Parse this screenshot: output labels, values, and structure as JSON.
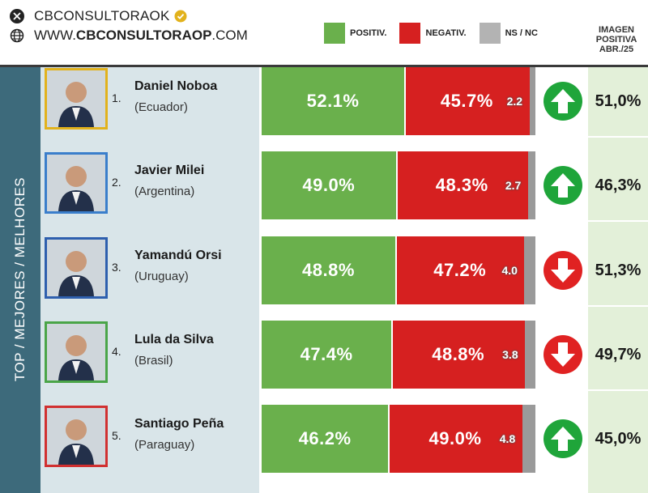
{
  "header": {
    "handle": "CBCONSULTORAOK",
    "site_prefix": "WWW.",
    "site_bold": "CBCONSULTORAOP",
    "site_suffix": ".COM",
    "icons": [
      "x-logo-icon",
      "verified-badge-icon",
      "globe-icon"
    ]
  },
  "legend": [
    {
      "label": "POSITIV.",
      "color": "#6ab04c"
    },
    {
      "label": "NEGATIV.",
      "color": "#d62020"
    },
    {
      "label": "NS / NC",
      "color": "#b3b3b3"
    }
  ],
  "column_header": [
    "IMAGEN",
    "POSITIVA",
    "ABR./25"
  ],
  "sidebar_label": "TOP / MEJORES / MELHORES",
  "colors": {
    "positive": "#6ab04c",
    "negative": "#d62020",
    "nsnc": "#9a9a9a",
    "up": "#1fa53a",
    "down": "#e02222"
  },
  "chart_data": {
    "type": "bar",
    "stacked": true,
    "orientation": "horizontal",
    "categories": [
      "Daniel Noboa",
      "Javier Milei",
      "Yamandú Orsi",
      "Lula da Silva",
      "Santiago Peña"
    ],
    "series": [
      {
        "name": "POSITIV.",
        "values": [
          52.1,
          49.0,
          48.8,
          47.4,
          46.2
        ],
        "labels": [
          "52.1%",
          "49.0%",
          "48.8%",
          "47.4%",
          "46.2%"
        ]
      },
      {
        "name": "NEGATIV.",
        "values": [
          45.7,
          48.3,
          47.2,
          48.8,
          49.0
        ],
        "labels": [
          "45.7%",
          "48.3%",
          "47.2%",
          "48.8%",
          "49.0%"
        ]
      },
      {
        "name": "NS / NC",
        "values": [
          2.2,
          2.7,
          4.0,
          3.8,
          4.8
        ],
        "labels": [
          "2.2",
          "2.7",
          "4.0",
          "3.8",
          "4.8"
        ]
      }
    ],
    "xlim": [
      0,
      100
    ]
  },
  "rows": [
    {
      "rank": "1.",
      "name": "Daniel Noboa",
      "country": "(Ecuador)",
      "previous": "51,0%",
      "trend": "up",
      "photo_border": "#e2b21c"
    },
    {
      "rank": "2.",
      "name": "Javier Milei",
      "country": "(Argentina)",
      "previous": "46,3%",
      "trend": "up",
      "photo_border": "#3a7ecb"
    },
    {
      "rank": "3.",
      "name": "Yamandú Orsi",
      "country": "(Uruguay)",
      "previous": "51,3%",
      "trend": "down",
      "photo_border": "#2e5fae"
    },
    {
      "rank": "4.",
      "name": "Lula da Silva",
      "country": "(Brasil)",
      "previous": "49,7%",
      "trend": "down",
      "photo_border": "#4aa548"
    },
    {
      "rank": "5.",
      "name": "Santiago Peña",
      "country": "(Paraguay)",
      "previous": "45,0%",
      "trend": "up",
      "photo_border": "#d13030"
    }
  ]
}
